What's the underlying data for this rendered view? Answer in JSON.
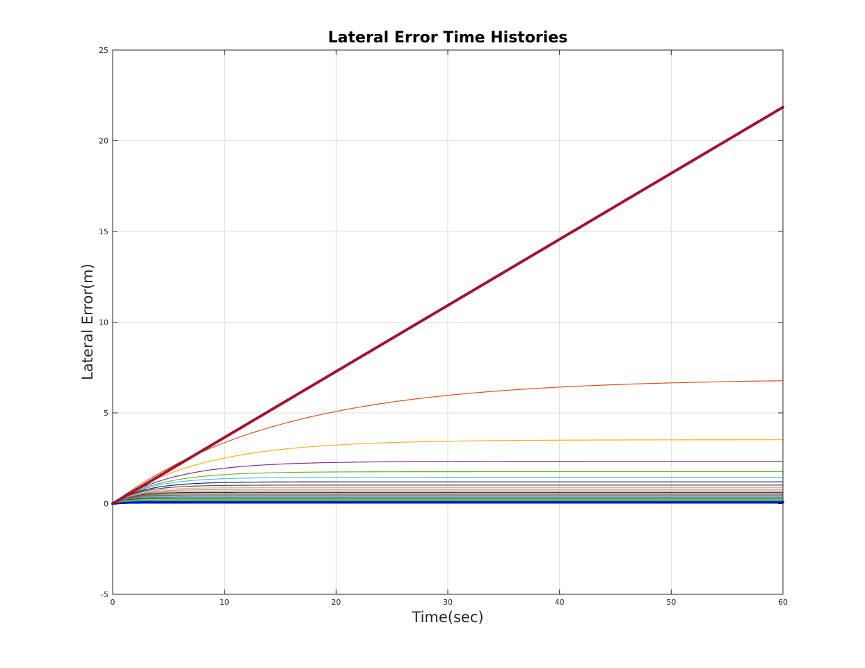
{
  "chart_data": {
    "type": "line",
    "title": "Lateral Error Time Histories",
    "xlabel": "Time(sec)",
    "ylabel": "Lateral Error(m)",
    "xlim": [
      0,
      60
    ],
    "ylim": [
      -5,
      25
    ],
    "xticks": [
      0,
      10,
      20,
      30,
      40,
      50,
      60
    ],
    "yticks": [
      -5,
      0,
      5,
      10,
      15,
      20,
      25
    ],
    "grid": true,
    "legend": "none",
    "series": [
      {
        "color": "#A2142F",
        "linewidth": 4,
        "model": "linear",
        "final": 21.85
      },
      {
        "color": "#D95319",
        "linewidth": 1.2,
        "model": "exp",
        "final": 6.9,
        "tau": 15
      },
      {
        "color": "#EDB120",
        "linewidth": 1.2,
        "model": "exp",
        "final": 3.52,
        "tau": 8
      },
      {
        "color": "#7E2F8E",
        "linewidth": 1.2,
        "model": "exp",
        "final": 2.33,
        "tau": 5.5
      },
      {
        "color": "#77AC30",
        "linewidth": 1.2,
        "model": "exp",
        "final": 1.76,
        "tau": 4.2
      },
      {
        "color": "#4DBEEE",
        "linewidth": 1.2,
        "model": "exp",
        "final": 1.45,
        "tau": 3.4
      },
      {
        "color": "#1a1a80",
        "linewidth": 1.2,
        "model": "exp",
        "final": 1.2,
        "tau": 2.9
      },
      {
        "color": "#4d4d4d",
        "linewidth": 1.2,
        "model": "exp",
        "final": 1.02,
        "tau": 2.5
      },
      {
        "color": "#F0A0A0",
        "linewidth": 1.2,
        "model": "exp",
        "final": 0.88,
        "tau": 2.2
      },
      {
        "color": "#c8a050",
        "linewidth": 1.2,
        "model": "exp",
        "final": 0.78,
        "tau": 2.0
      },
      {
        "color": "#a0a0c0",
        "linewidth": 1.2,
        "model": "exp",
        "final": 0.7,
        "tau": 1.8
      },
      {
        "color": "#333333",
        "linewidth": 1.2,
        "model": "exp",
        "final": 0.62,
        "tau": 1.6
      },
      {
        "color": "#8c6d31",
        "linewidth": 1.2,
        "model": "exp",
        "final": 0.55,
        "tau": 1.5
      },
      {
        "color": "#5a5a5a",
        "linewidth": 1.2,
        "model": "exp",
        "final": 0.48,
        "tau": 1.35
      },
      {
        "color": "#b07aa1",
        "linewidth": 1.2,
        "model": "exp",
        "final": 0.42,
        "tau": 1.25
      },
      {
        "color": "#2a9d8f",
        "linewidth": 1.2,
        "model": "exp",
        "final": 0.36,
        "tau": 1.15
      },
      {
        "color": "#3a3a3a",
        "linewidth": 1.2,
        "model": "exp",
        "final": 0.3,
        "tau": 1.05
      },
      {
        "color": "#99c24d",
        "linewidth": 1.2,
        "model": "exp",
        "final": 0.25,
        "tau": 0.95
      },
      {
        "color": "#00b0a0",
        "linewidth": 1.2,
        "model": "exp",
        "final": 0.2,
        "tau": 0.85
      },
      {
        "color": "#3cb44b",
        "linewidth": 1.2,
        "model": "exp",
        "final": 0.15,
        "tau": 0.75
      },
      {
        "color": "#0000CC",
        "linewidth": 4,
        "model": "exp",
        "final": 0.08,
        "tau": 0.6
      }
    ]
  }
}
